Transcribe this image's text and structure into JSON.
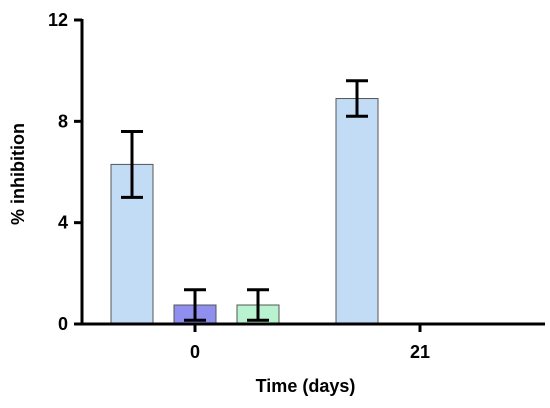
{
  "chart_data": {
    "type": "bar",
    "title": "",
    "xlabel": "Time (days)",
    "ylabel": "% inhibition",
    "ylim": [
      0,
      12
    ],
    "yticks": [
      "0",
      "4",
      "8",
      "12"
    ],
    "ytick_values": [
      0,
      4,
      8,
      12
    ],
    "categories": [
      "0",
      "21"
    ],
    "grid": false,
    "legend": "none",
    "series": [
      {
        "values": [
          6.3,
          8.9
        ],
        "errors": [
          1.3,
          0.7
        ],
        "color": "#c2dcf5"
      },
      {
        "values": [
          0.75,
          0
        ],
        "errors": [
          0.6,
          0
        ],
        "color": "#8f8ff0"
      },
      {
        "values": [
          0.75,
          0
        ],
        "errors": [
          0.6,
          0
        ],
        "color": "#b9f2cf"
      }
    ]
  }
}
